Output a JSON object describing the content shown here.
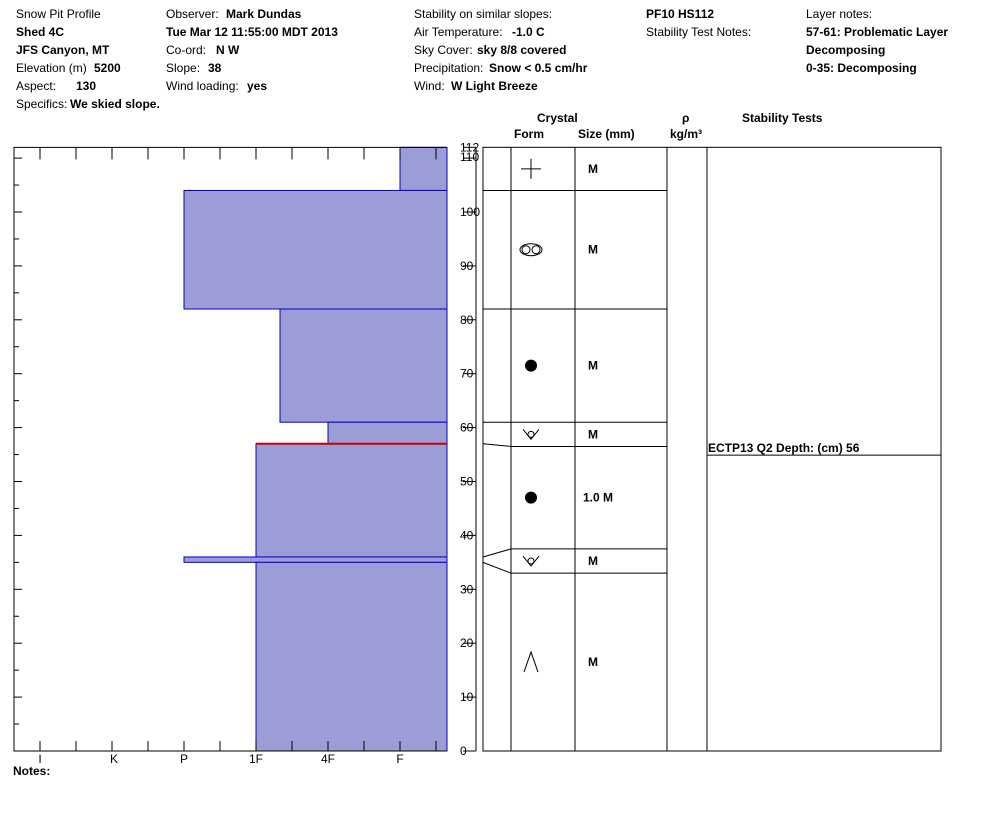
{
  "header": {
    "col1": {
      "profile_label": "Snow Pit Profile",
      "location": "Shed 4C",
      "area": "JFS Canyon, MT",
      "elevation_label": "Elevation (m)",
      "elevation_value": "5200",
      "aspect_label": "Aspect:",
      "aspect_value": "130",
      "specifics_label": "Specifics:",
      "specifics_value": "We skied slope."
    },
    "col2": {
      "observer_label": "Observer:",
      "observer_value": "Mark Dundas",
      "datetime": "Tue Mar 12 11:55:00 MDT 2013",
      "coord_label": "Co-ord:",
      "coord_value": "N  W",
      "slope_label": "Slope:",
      "slope_value": "38",
      "wind_loading_label": "Wind loading:",
      "wind_loading_value": "yes"
    },
    "col3": {
      "stability_similar_label": "Stability on similar slopes:",
      "air_temp_label": "Air Temperature:",
      "air_temp_value": "-1.0 C",
      "sky_label": "Sky Cover:",
      "sky_value": "sky 8/8 covered",
      "precip_label": "Precipitation:",
      "precip_value": "Snow < 0.5 cm/hr",
      "wind_label": "Wind:",
      "wind_value": "W Light Breeze"
    },
    "col4": {
      "pf": "PF10 HS112",
      "stability_notes_label": "Stability Test Notes:"
    },
    "col5": {
      "layer_notes_label": "Layer notes:",
      "note1": "57-61: Problematic Layer",
      "note2": "Decomposing",
      "note3": "0-35: Decomposing"
    }
  },
  "table": {
    "crystal_label": "Crystal",
    "form_label": "Form",
    "size_label": "Size (mm)",
    "rho_label": "ρ",
    "density_unit": "kg/m³",
    "stability_tests_label": "Stability Tests",
    "test_result": "ECTP13 Q2 Depth: (cm) 56",
    "test_depth": 56
  },
  "notes_label": "Notes:",
  "colors": {
    "fill": "#9c9cd6",
    "stroke": "#0000cc",
    "critical": "#cc0000"
  },
  "chart_data": {
    "type": "bar",
    "orientation": "horizontal",
    "ylim": [
      0,
      112
    ],
    "y_ticks": [
      0,
      10,
      20,
      30,
      40,
      50,
      60,
      70,
      80,
      90,
      100,
      110,
      112
    ],
    "x_categories": [
      "I",
      "K",
      "P",
      "1F",
      "4F",
      "F"
    ],
    "layers": [
      {
        "bottom": 104,
        "top": 112,
        "hardness": "F"
      },
      {
        "bottom": 82,
        "top": 104,
        "hardness": "P"
      },
      {
        "bottom": 61,
        "top": 82,
        "hardness": "1F+"
      },
      {
        "bottom": 57,
        "top": 61,
        "hardness": "4F"
      },
      {
        "bottom": 36,
        "top": 57,
        "hardness": "1F"
      },
      {
        "bottom": 35,
        "top": 36,
        "hardness": "P"
      },
      {
        "bottom": 0,
        "top": 35,
        "hardness": "1F"
      }
    ],
    "critical_line_height": 57,
    "grain_rows": [
      {
        "top": 112,
        "bottom": 104,
        "form": "new-snow-icon",
        "size": "M"
      },
      {
        "top": 104,
        "bottom": 82,
        "form": "decomposing-icon",
        "size": "M"
      },
      {
        "top": 82,
        "bottom": 61,
        "form": "rounded-grain-icon",
        "size": "M"
      },
      {
        "top": 61,
        "bottom": 56.5,
        "form": "surface-hoar-icon",
        "size": "M"
      },
      {
        "top": 56.5,
        "bottom": 37.5,
        "form": "rounded-grain-icon",
        "size": "1.0 M"
      },
      {
        "top": 37.5,
        "bottom": 33,
        "form": "surface-hoar-icon",
        "size": "M"
      },
      {
        "top": 33,
        "bottom": 0,
        "form": "depth-hoar-icon",
        "size": "M"
      }
    ]
  }
}
